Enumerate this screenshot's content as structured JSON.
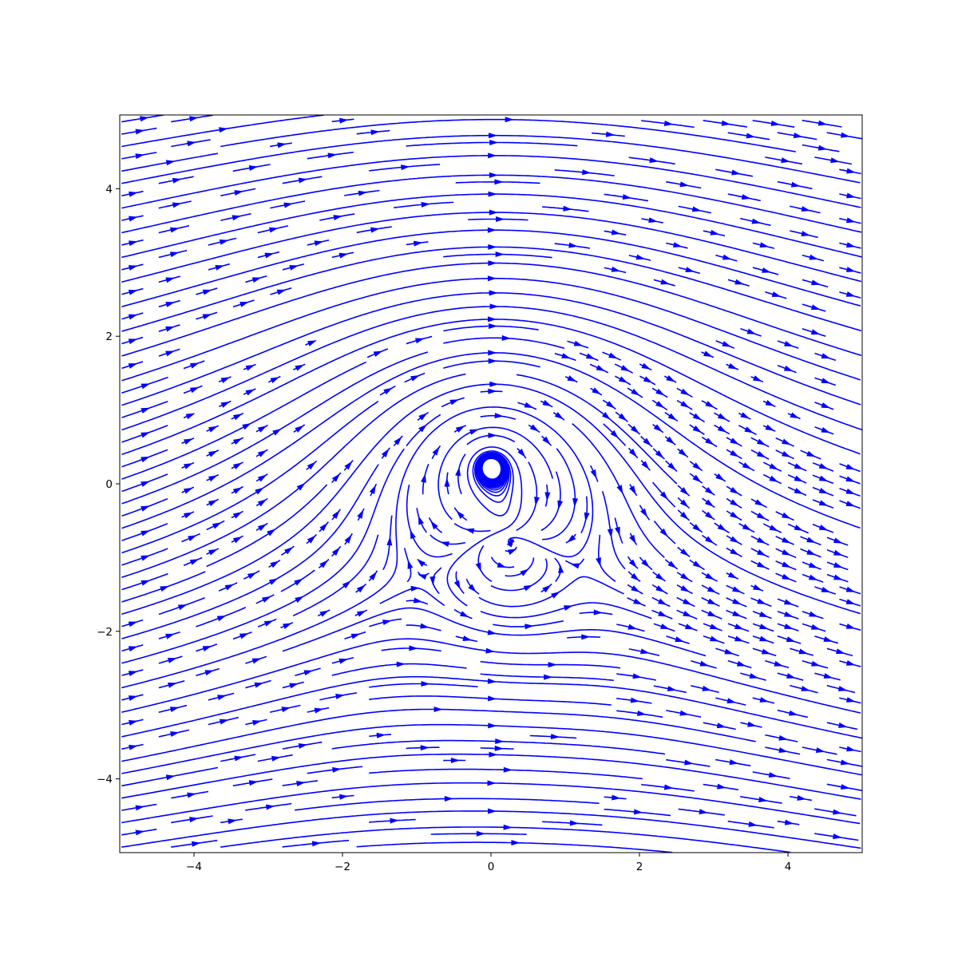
{
  "chart_data": {
    "type": "streamplot",
    "title": "",
    "xlabel": "",
    "ylabel": "",
    "xlim": [
      -5,
      5
    ],
    "ylim": [
      -5,
      5
    ],
    "grid": false,
    "line_color": "#0000ff",
    "x_ticks": [
      -4,
      -2,
      0,
      2,
      4
    ],
    "y_ticks": [
      -4,
      -2,
      0,
      2,
      4
    ],
    "x_tick_labels": [
      "−4",
      "−2",
      "0",
      "2",
      "4"
    ],
    "y_tick_labels": [
      "−4",
      "−2",
      "0",
      "2",
      "4"
    ],
    "field": {
      "uniform_flow": [
        1.0,
        0.0
      ],
      "vortex": {
        "center": [
          0.0,
          0.25
        ],
        "circulation_sign": "clockwise"
      },
      "stagnation_region": {
        "center": [
          0.3,
          -1.3
        ]
      }
    }
  }
}
